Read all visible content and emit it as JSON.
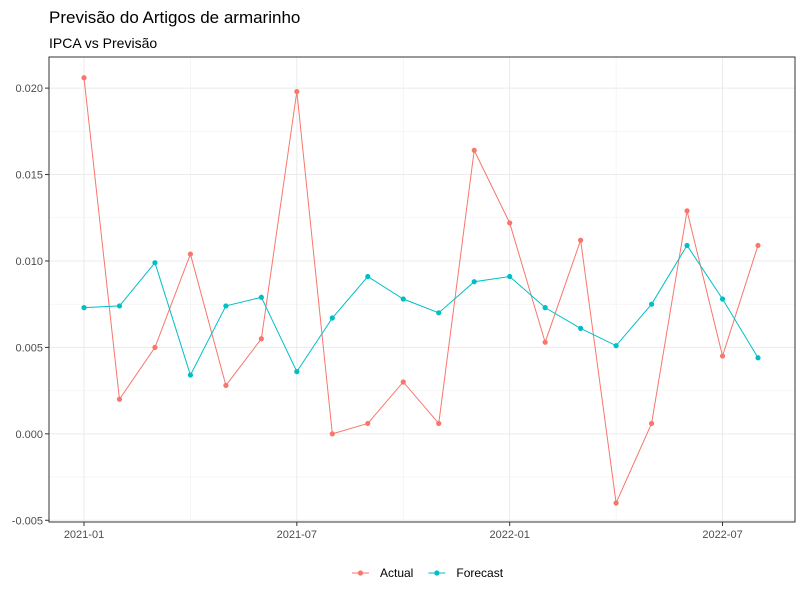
{
  "chart_data": {
    "type": "line",
    "title": "Previsão do Artigos de armarinho",
    "subtitle": "IPCA vs Previsão",
    "xlabel": "",
    "ylabel": "",
    "x": [
      "2021-01",
      "2021-02",
      "2021-03",
      "2021-04",
      "2021-05",
      "2021-06",
      "2021-07",
      "2021-08",
      "2021-09",
      "2021-10",
      "2021-11",
      "2021-12",
      "2022-01",
      "2022-02",
      "2022-03",
      "2022-04",
      "2022-05",
      "2022-06",
      "2022-07",
      "2022-08"
    ],
    "x_ticks": [
      "2021-01",
      "2021-07",
      "2022-01",
      "2022-07"
    ],
    "y_ticks": [
      "-0.005",
      "0.000",
      "0.005",
      "0.010",
      "0.015",
      "0.020"
    ],
    "ylim": [
      -0.0051,
      0.0218
    ],
    "grid": true,
    "legend_position": "bottom",
    "series": [
      {
        "name": "Actual",
        "color": "#F8766D",
        "values": [
          0.0206,
          0.002,
          0.005,
          0.0104,
          0.0028,
          0.0055,
          0.0198,
          0.0,
          0.0006,
          0.003,
          0.0006,
          0.0164,
          0.0122,
          0.0053,
          0.0112,
          -0.004,
          0.0006,
          0.0129,
          0.0045,
          0.0109
        ]
      },
      {
        "name": "Forecast",
        "color": "#00BFC4",
        "values": [
          0.0073,
          0.0074,
          0.0099,
          0.0034,
          0.0074,
          0.0079,
          0.0036,
          0.0067,
          0.0091,
          0.0078,
          0.007,
          0.0088,
          0.0091,
          0.0073,
          0.0061,
          0.0051,
          0.0075,
          0.0109,
          0.0078,
          0.0044
        ]
      }
    ]
  }
}
